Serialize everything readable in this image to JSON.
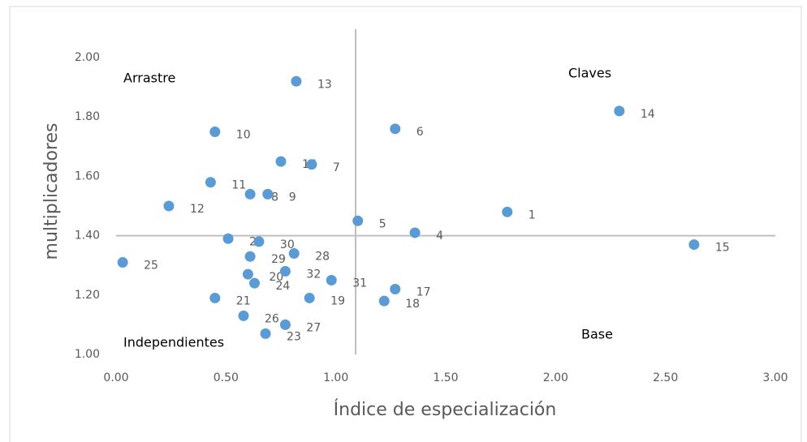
{
  "chart_data": {
    "type": "scatter",
    "x_label": "Índice de especialización",
    "y_label": "multiplicadores",
    "annotations": [
      "Arrastre",
      "Claves",
      "Independientes",
      "Base"
    ],
    "color": "#5b9bd5",
    "point_labels": [
      "13",
      "10",
      "6",
      "14",
      "16",
      "7",
      "11",
      "8",
      "9",
      "12",
      "5",
      "1",
      "4",
      "15",
      "22",
      "30",
      "28",
      "29",
      "25",
      "20",
      "32",
      "24",
      "31",
      "17",
      "21",
      "19",
      "18",
      "26",
      "27",
      "23"
    ],
    "x": [
      0.82,
      0.45,
      1.27,
      2.29,
      0.75,
      0.89,
      0.43,
      0.61,
      0.69,
      0.24,
      1.1,
      1.78,
      1.36,
      2.63,
      0.51,
      0.65,
      0.81,
      0.61,
      0.03,
      0.6,
      0.77,
      0.63,
      0.98,
      1.27,
      0.45,
      0.88,
      1.22,
      0.58,
      0.77,
      0.68
    ],
    "values": [
      1.92,
      1.75,
      1.76,
      1.82,
      1.65,
      1.64,
      1.58,
      1.54,
      1.54,
      1.5,
      1.45,
      1.48,
      1.41,
      1.37,
      1.39,
      1.38,
      1.34,
      1.33,
      1.31,
      1.27,
      1.28,
      1.24,
      1.25,
      1.22,
      1.19,
      1.19,
      1.18,
      1.13,
      1.1,
      1.07
    ],
    "xlim": [
      0,
      3
    ],
    "ylim": [
      1,
      2
    ],
    "xticks": [
      {
        "value": 0,
        "label": "0.00"
      },
      {
        "value": 0.5,
        "label": "0.50"
      },
      {
        "value": 1,
        "label": "1.00"
      },
      {
        "value": 1.5,
        "label": "1.50"
      },
      {
        "value": 2,
        "label": "2.00"
      },
      {
        "value": 2.5,
        "label": "2.50"
      },
      {
        "value": 3,
        "label": "3.00"
      }
    ],
    "yticks": [
      {
        "value": 1,
        "label": "1.00"
      },
      {
        "value": 1.2,
        "label": "1.20"
      },
      {
        "value": 1.4,
        "label": "1.40"
      },
      {
        "value": 1.6,
        "label": "1.60"
      },
      {
        "value": 1.8,
        "label": "1.80"
      },
      {
        "value": 2,
        "label": "2.00"
      }
    ],
    "reference_x": 1.09,
    "reference_y": 1.4
  }
}
